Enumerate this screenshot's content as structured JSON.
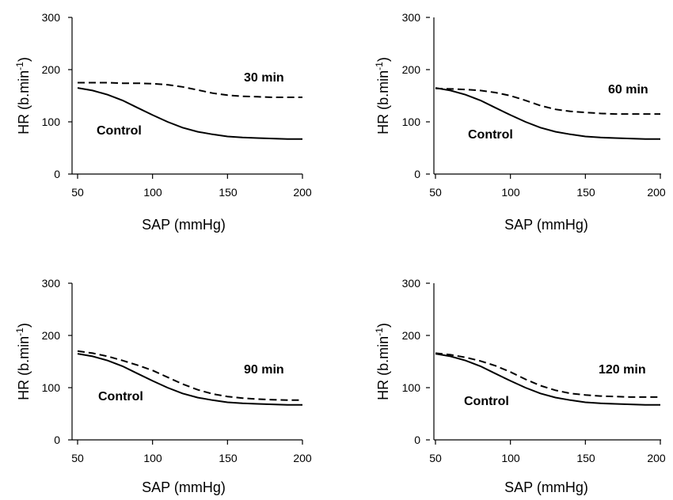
{
  "chart_data": [
    {
      "type": "line",
      "xlabel": "SAP (mmHg)",
      "ylabel": "HR (b.min-1)",
      "ylabel_parts": {
        "base": "HR (b.min",
        "sup": "-1",
        "close": ")"
      },
      "xlim": [
        50,
        200
      ],
      "ylim": [
        0,
        300
      ],
      "xticks": [
        "50",
        "100",
        "150",
        "200"
      ],
      "yticks": [
        "0",
        "100",
        "200",
        "300"
      ],
      "grid": false,
      "annotations": {
        "period": "30 min",
        "control": "Control"
      },
      "series": [
        {
          "name": "Control",
          "style": "solid",
          "x": [
            50,
            60,
            70,
            80,
            90,
            100,
            110,
            120,
            130,
            140,
            150,
            160,
            170,
            180,
            190,
            200
          ],
          "y": [
            165,
            160,
            152,
            141,
            127,
            113,
            100,
            89,
            81,
            76,
            72,
            70,
            69,
            68,
            67,
            67
          ]
        },
        {
          "style": "dashed",
          "x": [
            50,
            60,
            70,
            80,
            90,
            100,
            110,
            120,
            130,
            140,
            150,
            160,
            170,
            180,
            190,
            200
          ],
          "y": [
            175,
            175,
            175,
            174,
            174,
            173,
            171,
            167,
            161,
            155,
            151,
            149,
            148,
            147,
            147,
            147
          ]
        }
      ]
    },
    {
      "type": "line",
      "xlabel": "SAP (mmHg)",
      "ylabel": "HR (b.min-1)",
      "ylabel_parts": {
        "base": "HR (b.min",
        "sup": "-1",
        "close": ")"
      },
      "xlim": [
        50,
        200
      ],
      "ylim": [
        0,
        300
      ],
      "xticks": [
        "50",
        "100",
        "150",
        "200"
      ],
      "yticks": [
        "0",
        "100",
        "200",
        "300"
      ],
      "grid": false,
      "annotations": {
        "period": "60 min",
        "control": "Control"
      },
      "series": [
        {
          "name": "Control",
          "style": "solid",
          "x": [
            50,
            60,
            70,
            80,
            90,
            100,
            110,
            120,
            130,
            140,
            150,
            160,
            170,
            180,
            190,
            200
          ],
          "y": [
            165,
            160,
            152,
            141,
            127,
            113,
            100,
            89,
            81,
            76,
            72,
            70,
            69,
            68,
            67,
            67
          ]
        },
        {
          "style": "dashed",
          "x": [
            50,
            60,
            70,
            80,
            90,
            100,
            110,
            120,
            130,
            140,
            150,
            160,
            170,
            180,
            190,
            200
          ],
          "y": [
            164,
            163,
            162,
            160,
            156,
            150,
            141,
            131,
            124,
            120,
            118,
            116,
            115,
            115,
            115,
            115
          ]
        }
      ]
    },
    {
      "type": "line",
      "xlabel": "SAP (mmHg)",
      "ylabel": "HR (b.min-1)",
      "ylabel_parts": {
        "base": "HR (b.min",
        "sup": "-1",
        "close": ")"
      },
      "xlim": [
        50,
        200
      ],
      "ylim": [
        0,
        300
      ],
      "xticks": [
        "50",
        "100",
        "150",
        "200"
      ],
      "yticks": [
        "0",
        "100",
        "200",
        "300"
      ],
      "grid": false,
      "annotations": {
        "period": "90 min",
        "control": "Control"
      },
      "series": [
        {
          "name": "Control",
          "style": "solid",
          "x": [
            50,
            60,
            70,
            80,
            90,
            100,
            110,
            120,
            130,
            140,
            150,
            160,
            170,
            180,
            190,
            200
          ],
          "y": [
            165,
            160,
            152,
            141,
            127,
            113,
            100,
            89,
            81,
            76,
            72,
            70,
            69,
            68,
            67,
            67
          ]
        },
        {
          "style": "dashed",
          "x": [
            50,
            60,
            70,
            80,
            90,
            100,
            110,
            120,
            130,
            140,
            150,
            160,
            170,
            180,
            190,
            200
          ],
          "y": [
            170,
            166,
            160,
            152,
            143,
            133,
            120,
            107,
            96,
            88,
            83,
            80,
            78,
            77,
            76,
            76
          ]
        }
      ]
    },
    {
      "type": "line",
      "xlabel": "SAP (mmHg)",
      "ylabel": "HR (b.min-1)",
      "ylabel_parts": {
        "base": "HR (b.min",
        "sup": "-1",
        "close": ")"
      },
      "xlim": [
        50,
        200
      ],
      "ylim": [
        0,
        300
      ],
      "xticks": [
        "50",
        "100",
        "150",
        "200"
      ],
      "yticks": [
        "0",
        "100",
        "200",
        "300"
      ],
      "grid": false,
      "annotations": {
        "period": "120 min",
        "control": "Control"
      },
      "series": [
        {
          "name": "Control",
          "style": "solid",
          "x": [
            50,
            60,
            70,
            80,
            90,
            100,
            110,
            120,
            130,
            140,
            150,
            160,
            170,
            180,
            190,
            200
          ],
          "y": [
            165,
            160,
            152,
            141,
            127,
            113,
            100,
            89,
            81,
            76,
            72,
            70,
            69,
            68,
            67,
            67
          ]
        },
        {
          "style": "dashed",
          "x": [
            50,
            60,
            70,
            80,
            90,
            100,
            110,
            120,
            130,
            140,
            150,
            160,
            170,
            180,
            190,
            200
          ],
          "y": [
            166,
            163,
            158,
            151,
            142,
            130,
            116,
            104,
            95,
            89,
            86,
            84,
            83,
            82,
            82,
            82
          ]
        }
      ]
    }
  ]
}
